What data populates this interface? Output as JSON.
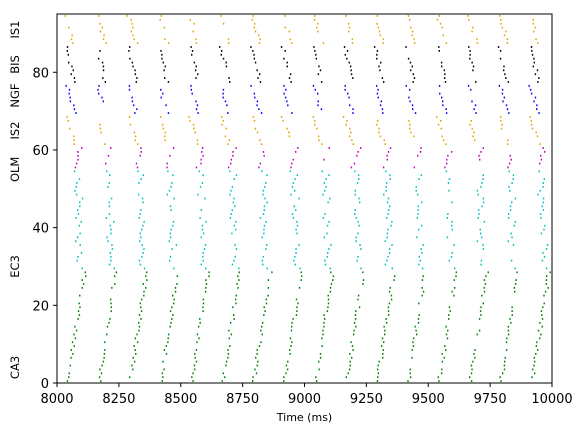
{
  "chart_data": {
    "type": "scatter",
    "title": "",
    "xlabel": "Time (ms)",
    "ylabel": "",
    "xlim": [
      8000,
      10000
    ],
    "ylim": [
      0,
      95
    ],
    "xticks": [
      8000,
      8250,
      8500,
      8750,
      9000,
      9250,
      9500,
      9750,
      10000
    ],
    "yticks": [
      0,
      20,
      40,
      60,
      80
    ],
    "grid": false,
    "legend": "none",
    "populations": [
      {
        "name": "CA3",
        "y_range": [
          0,
          29
        ],
        "color": "#008000",
        "y_center": 4
      },
      {
        "name": "EC3",
        "y_range": [
          29,
          55
        ],
        "color": "#00bfbf",
        "y_center": 30
      },
      {
        "name": "OLM",
        "y_range": [
          55,
          61
        ],
        "color": "#bf00bf",
        "y_center": 55
      },
      {
        "name": "IS2",
        "y_range": [
          61,
          69
        ],
        "color": "#e6a000",
        "y_center": 65
      },
      {
        "name": "NGF",
        "y_range": [
          69,
          77
        ],
        "color": "#0000ff",
        "y_center": 74
      },
      {
        "name": "BIS",
        "y_range": [
          77,
          87
        ],
        "color": "#000000",
        "y_center": 82
      },
      {
        "name": "IS1",
        "y_range": [
          87,
          95
        ],
        "color": "#e6a000",
        "y_center": 91
      }
    ],
    "theta_period_ms": 125,
    "spike_phase_start_ms": 8025
  },
  "axes": {
    "xlabel": "Time (ms)",
    "xtick_labels": [
      "8000",
      "8250",
      "8500",
      "8750",
      "9000",
      "9250",
      "9500",
      "9750",
      "10000"
    ],
    "ytick_labels": [
      "0",
      "20",
      "40",
      "60",
      "80"
    ]
  },
  "population_labels": [
    "CA3",
    "EC3",
    "OLM",
    "IS2",
    "NGF",
    "BIS",
    "IS1"
  ]
}
